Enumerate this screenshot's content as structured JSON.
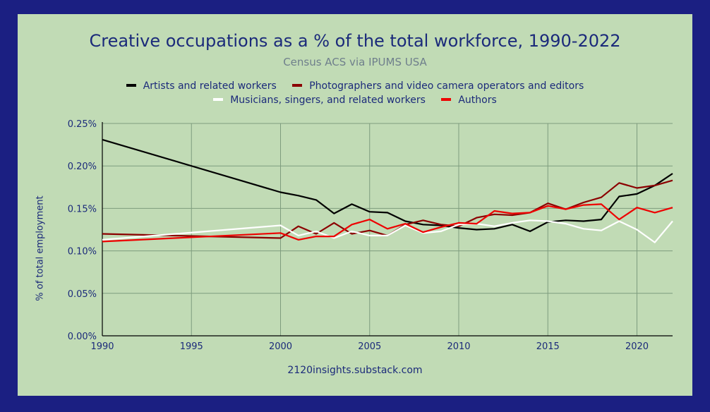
{
  "chart_data": {
    "type": "line",
    "title": "Creative occupations as a % of the total workforce, 1990-2022",
    "subtitle": "Census ACS via IPUMS USA",
    "source": "2120insights.substack.com",
    "ylabel": "% of total employment",
    "xlabel": "",
    "xlim": [
      1990,
      2022
    ],
    "ylim": [
      0,
      0.25
    ],
    "x_ticks": [
      1990,
      1995,
      2000,
      2005,
      2010,
      2015,
      2020
    ],
    "y_ticks": [
      0,
      0.05,
      0.1,
      0.15,
      0.2,
      0.25
    ],
    "y_tick_labels": [
      "0.00%",
      "0.05%",
      "0.10%",
      "0.15%",
      "0.20%",
      "0.25%"
    ],
    "grid": true,
    "legend_position": "top",
    "series": [
      {
        "name": "Artists and related workers",
        "color": "#000000",
        "x": [
          1990,
          2000,
          2001,
          2002,
          2003,
          2004,
          2005,
          2006,
          2007,
          2008,
          2009,
          2010,
          2011,
          2012,
          2013,
          2014,
          2015,
          2016,
          2017,
          2018,
          2019,
          2020,
          2021,
          2022
        ],
        "values": [
          0.231,
          0.169,
          0.165,
          0.16,
          0.144,
          0.155,
          0.146,
          0.145,
          0.135,
          0.131,
          0.13,
          0.127,
          0.125,
          0.126,
          0.131,
          0.123,
          0.134,
          0.136,
          0.135,
          0.137,
          0.164,
          0.167,
          0.177,
          0.191
        ]
      },
      {
        "name": "Photographers and video camera operators and editors",
        "color": "#8b0000",
        "x": [
          1990,
          2000,
          2001,
          2002,
          2003,
          2004,
          2005,
          2006,
          2007,
          2008,
          2009,
          2010,
          2011,
          2012,
          2013,
          2014,
          2015,
          2016,
          2017,
          2018,
          2019,
          2020,
          2021,
          2022
        ],
        "values": [
          0.12,
          0.115,
          0.129,
          0.12,
          0.133,
          0.12,
          0.124,
          0.118,
          0.131,
          0.136,
          0.131,
          0.129,
          0.139,
          0.143,
          0.142,
          0.145,
          0.156,
          0.149,
          0.157,
          0.163,
          0.18,
          0.174,
          0.177,
          0.183
        ]
      },
      {
        "name": "Musicians, singers, and related workers",
        "color": "#ffffff",
        "x": [
          1990,
          2000,
          2001,
          2002,
          2003,
          2004,
          2005,
          2006,
          2007,
          2008,
          2009,
          2010,
          2011,
          2012,
          2013,
          2014,
          2015,
          2016,
          2017,
          2018,
          2019,
          2020,
          2021,
          2022
        ],
        "values": [
          0.113,
          0.13,
          0.118,
          0.123,
          0.115,
          0.123,
          0.118,
          0.118,
          0.13,
          0.121,
          0.123,
          0.131,
          0.132,
          0.129,
          0.133,
          0.136,
          0.135,
          0.132,
          0.126,
          0.124,
          0.135,
          0.125,
          0.11,
          0.135
        ]
      },
      {
        "name": "Authors",
        "color": "#ee0000",
        "x": [
          1990,
          2000,
          2001,
          2002,
          2003,
          2004,
          2005,
          2006,
          2007,
          2008,
          2009,
          2010,
          2011,
          2012,
          2013,
          2014,
          2015,
          2016,
          2017,
          2018,
          2019,
          2020,
          2021,
          2022
        ],
        "values": [
          0.111,
          0.121,
          0.113,
          0.117,
          0.117,
          0.131,
          0.137,
          0.126,
          0.132,
          0.122,
          0.128,
          0.133,
          0.132,
          0.147,
          0.144,
          0.145,
          0.153,
          0.149,
          0.154,
          0.155,
          0.137,
          0.151,
          0.145,
          0.151
        ]
      }
    ]
  },
  "colors": {
    "page_background": "#1b1f82",
    "panel_background": "#c1dbb5",
    "grid": "#7e9c7e",
    "text": "#1b2a7a"
  }
}
